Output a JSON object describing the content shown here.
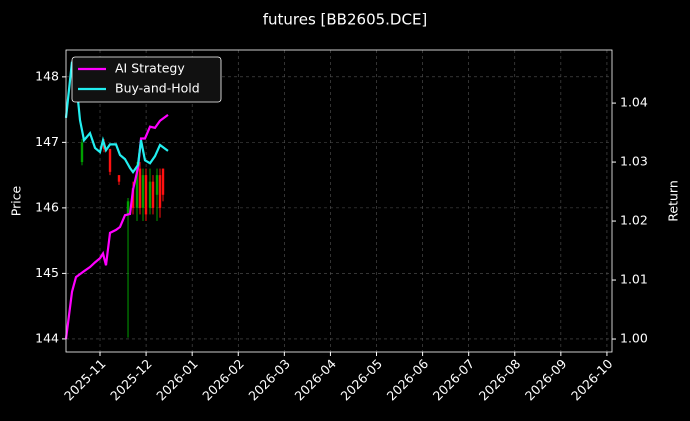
{
  "chart_data": {
    "type": "candlestick",
    "title": "futures [BB2605.DCE]",
    "ylabel": "Price",
    "y2label": "Return",
    "xlim": [
      0.262,
      12.11
    ],
    "xticks": [
      {
        "value": 1,
        "label": "2025-11"
      },
      {
        "value": 2,
        "label": "2025-12"
      },
      {
        "value": 3,
        "label": "2026-01"
      },
      {
        "value": 4,
        "label": "2026-02"
      },
      {
        "value": 5,
        "label": "2026-03"
      },
      {
        "value": 6,
        "label": "2026-04"
      },
      {
        "value": 7,
        "label": "2026-05"
      },
      {
        "value": 8,
        "label": "2026-06"
      },
      {
        "value": 9,
        "label": "2026-07"
      },
      {
        "value": 10,
        "label": "2026-08"
      },
      {
        "value": 11,
        "label": "2026-09"
      },
      {
        "value": 12,
        "label": "2026-10"
      }
    ],
    "ylim": [
      143.8,
      148.41
    ],
    "yticks": [
      144,
      145,
      146,
      147,
      148
    ],
    "y2lim": [
      0.9978,
      1.049
    ],
    "y2ticks": [
      {
        "value": 1.0,
        "label": "1.00"
      },
      1.01,
      1.02,
      1.03,
      1.04
    ],
    "grid": true,
    "legend": "upper left",
    "candles": {
      "up_color": "#00a000",
      "down_color": "#ff1010",
      "x": [
        0.609,
        1.087,
        1.217,
        1.412,
        1.608,
        1.716,
        1.803,
        1.868,
        1.933,
        1.998,
        2.085,
        2.15,
        2.237,
        2.302,
        2.367
      ],
      "open": [
        146.7,
        147.0,
        146.9,
        146.5,
        145.9,
        146.3,
        146.0,
        146.6,
        146.0,
        146.5,
        146.0,
        146.4,
        146.2,
        146.5,
        146.6
      ],
      "high": [
        147.05,
        147.05,
        146.9,
        146.5,
        146.15,
        146.4,
        146.7,
        146.7,
        146.6,
        146.6,
        146.6,
        146.5,
        146.6,
        146.6,
        146.6
      ],
      "low": [
        146.65,
        146.85,
        146.5,
        146.35,
        144.02,
        145.9,
        145.8,
        145.9,
        145.8,
        145.8,
        145.9,
        145.9,
        145.8,
        145.85,
        146.1
      ],
      "close": [
        147.0,
        146.9,
        146.55,
        146.4,
        146.1,
        146.0,
        146.6,
        146.0,
        146.5,
        145.9,
        146.4,
        146.0,
        146.5,
        146.0,
        146.2
      ]
    },
    "x": [
      0.262,
      0.392,
      0.479,
      0.566,
      0.653,
      0.783,
      0.892,
      1.0,
      1.065,
      1.13,
      1.217,
      1.347,
      1.434,
      1.542,
      1.651,
      1.716,
      1.824,
      1.89,
      1.976,
      2.085,
      2.193,
      2.302,
      2.475
    ],
    "series": [
      {
        "name": "AI Strategy",
        "color": "#ff00ff",
        "axis": "y2",
        "values": [
          1.0,
          1.008,
          1.0105,
          1.011,
          1.0115,
          1.0122,
          1.013,
          1.0137,
          1.0145,
          1.0125,
          1.018,
          1.0185,
          1.019,
          1.021,
          1.0212,
          1.0253,
          1.029,
          1.034,
          1.034,
          1.036,
          1.0358,
          1.037,
          1.038
        ]
      },
      {
        "name": "Buy-and-Hold",
        "color": "#22eef0",
        "axis": "y2",
        "values": [
          1.0375,
          1.047,
          1.0439,
          1.0371,
          1.0337,
          1.0349,
          1.0324,
          1.0317,
          1.0337,
          1.032,
          1.033,
          1.033,
          1.0312,
          1.0305,
          1.029,
          1.0283,
          1.0295,
          1.0337,
          1.0303,
          1.0298,
          1.031,
          1.0329,
          1.0319
        ]
      }
    ]
  }
}
